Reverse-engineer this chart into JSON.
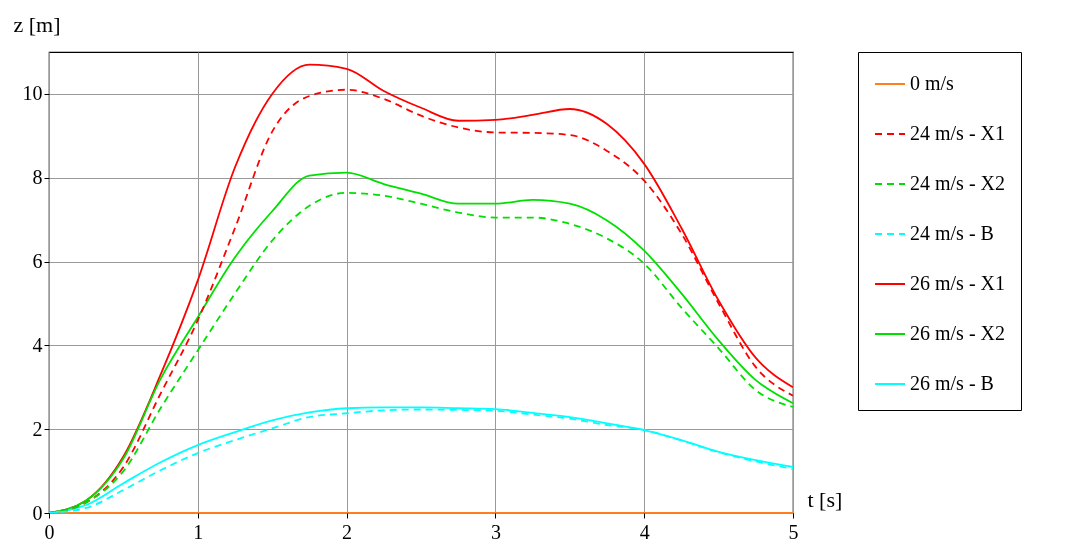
{
  "chart_data": {
    "type": "line",
    "xlabel": "t [s]",
    "ylabel": "z [m]",
    "x": [
      0,
      0.25,
      0.5,
      0.75,
      1,
      1.25,
      1.5,
      1.75,
      2,
      2.25,
      2.5,
      2.75,
      3,
      3.25,
      3.5,
      3.75,
      4,
      4.25,
      4.5,
      4.75,
      5
    ],
    "series": [
      {
        "name": "0 m/s",
        "color": "#ff7f1e",
        "line_style": "solid",
        "values": [
          0,
          0,
          0,
          0,
          0,
          0,
          0,
          0,
          0,
          0,
          0,
          0,
          0,
          0,
          0,
          0,
          0,
          0,
          0,
          0,
          0
        ]
      },
      {
        "name": "24 m/s - X1",
        "color": "#ff0000",
        "line_style": "dashed",
        "values": [
          0,
          0.25,
          1.1,
          2.85,
          4.6,
          6.8,
          9.1,
          9.95,
          10.1,
          9.88,
          9.48,
          9.2,
          9.08,
          9.07,
          9.02,
          8.64,
          7.93,
          6.67,
          5.0,
          3.48,
          2.8
        ]
      },
      {
        "name": "24 m/s - X2",
        "color": "#00e000",
        "line_style": "dashed",
        "values": [
          0,
          0.25,
          1.0,
          2.5,
          3.88,
          5.24,
          6.5,
          7.33,
          7.64,
          7.57,
          7.38,
          7.17,
          7.05,
          7.05,
          6.9,
          6.55,
          5.95,
          4.9,
          3.93,
          2.93,
          2.53
        ]
      },
      {
        "name": "24 m/s - B",
        "color": "#00ffff",
        "line_style": "dashed",
        "values": [
          0,
          0.12,
          0.55,
          1.02,
          1.43,
          1.74,
          2.02,
          2.29,
          2.38,
          2.45,
          2.47,
          2.46,
          2.44,
          2.35,
          2.25,
          2.1,
          1.98,
          1.73,
          1.45,
          1.23,
          1.05
        ]
      },
      {
        "name": "26 m/s - X1",
        "color": "#ff0000",
        "line_style": "solid",
        "values": [
          0,
          0.3,
          1.35,
          3.3,
          5.55,
          8.25,
          10.0,
          10.7,
          10.6,
          10.07,
          9.67,
          9.36,
          9.38,
          9.5,
          9.64,
          9.28,
          8.33,
          6.8,
          5.07,
          3.7,
          3.0
        ]
      },
      {
        "name": "26 m/s - X2",
        "color": "#00e000",
        "line_style": "solid",
        "values": [
          0,
          0.3,
          1.3,
          3.2,
          4.67,
          6.1,
          7.2,
          8.05,
          8.12,
          7.85,
          7.62,
          7.38,
          7.38,
          7.47,
          7.38,
          6.98,
          6.26,
          5.24,
          4.12,
          3.17,
          2.62
        ]
      },
      {
        "name": "26 m/s - B",
        "color": "#00ffff",
        "line_style": "solid",
        "values": [
          0,
          0.19,
          0.71,
          1.21,
          1.62,
          1.93,
          2.21,
          2.4,
          2.5,
          2.52,
          2.52,
          2.5,
          2.48,
          2.39,
          2.29,
          2.14,
          1.98,
          1.74,
          1.46,
          1.26,
          1.1
        ]
      }
    ],
    "xlim": [
      0,
      5
    ],
    "xticks": [
      0,
      1,
      2,
      3,
      4,
      5
    ],
    "ylim": [
      0,
      11
    ],
    "yticks": [
      0,
      2,
      4,
      6,
      8,
      10
    ],
    "grid": true,
    "legend": "right"
  }
}
